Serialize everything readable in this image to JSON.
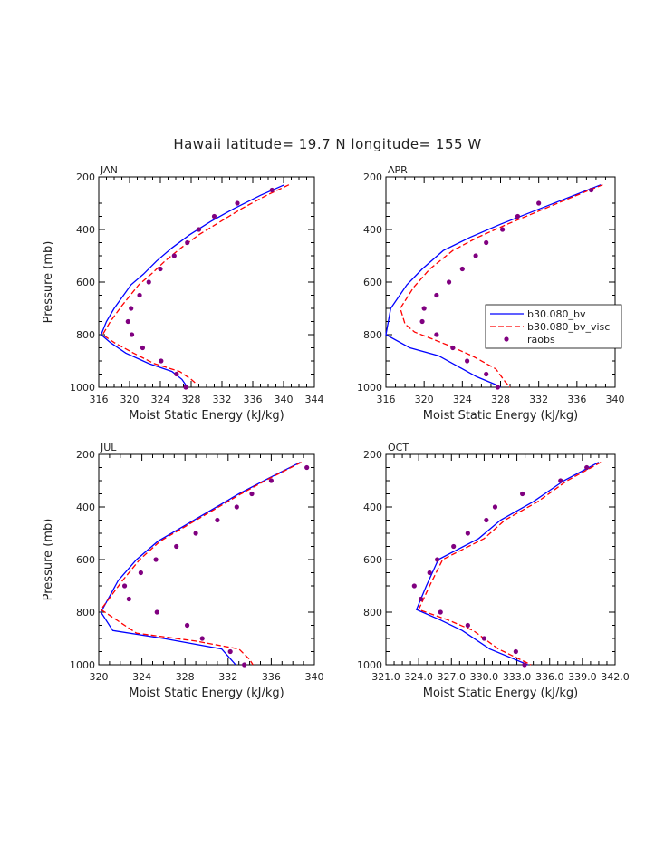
{
  "title": "Hawaii  latitude= 19.7 N longitude= 155 W",
  "chart_data": [
    {
      "type": "line",
      "panel": "JAN",
      "xlabel": "Moist Static Energy (kJ/kg)",
      "ylabel": "Pressure (mb)",
      "xlim": [
        316,
        344
      ],
      "xticks": [
        "316",
        "320",
        "324",
        "328",
        "332",
        "336",
        "340",
        "344"
      ],
      "ylim": [
        1000,
        200
      ],
      "yticks": [
        "200",
        "400",
        "600",
        "800",
        "1000"
      ],
      "series": [
        {
          "name": "b30.080_bv",
          "color": "#0000ff",
          "style": "solid",
          "points": [
            [
              340.1,
              230
            ],
            [
              337.0,
              270
            ],
            [
              333.6,
              320
            ],
            [
              330.5,
              370
            ],
            [
              327.8,
              420
            ],
            [
              325.5,
              470
            ],
            [
              323.5,
              520
            ],
            [
              321.8,
              570
            ],
            [
              320.2,
              610
            ],
            [
              318.0,
              700
            ],
            [
              317.0,
              750
            ],
            [
              316.3,
              800
            ],
            [
              317.5,
              830
            ],
            [
              319.5,
              870
            ],
            [
              322.5,
              910
            ],
            [
              325.5,
              940
            ],
            [
              326.8,
              970
            ],
            [
              327.5,
              1000
            ]
          ]
        },
        {
          "name": "b30.080_bv_visc",
          "color": "#ff0000",
          "style": "dashed",
          "points": [
            [
              340.7,
              230
            ],
            [
              337.8,
              270
            ],
            [
              334.6,
              320
            ],
            [
              331.8,
              370
            ],
            [
              329.0,
              420
            ],
            [
              326.7,
              470
            ],
            [
              324.6,
              520
            ],
            [
              322.8,
              570
            ],
            [
              321.2,
              610
            ],
            [
              319.0,
              690
            ],
            [
              317.5,
              750
            ],
            [
              316.5,
              800
            ],
            [
              318.0,
              830
            ],
            [
              320.5,
              870
            ],
            [
              323.2,
              910
            ],
            [
              326.5,
              940
            ],
            [
              328.0,
              970
            ],
            [
              328.8,
              990
            ]
          ]
        }
      ],
      "points": {
        "name": "raobs",
        "color": "#800080",
        "data": [
          [
            338.5,
            250
          ],
          [
            334.0,
            300
          ],
          [
            331.0,
            350
          ],
          [
            329.0,
            400
          ],
          [
            327.5,
            450
          ],
          [
            325.8,
            500
          ],
          [
            324.0,
            550
          ],
          [
            322.5,
            600
          ],
          [
            321.3,
            650
          ],
          [
            320.2,
            700
          ],
          [
            319.8,
            750
          ],
          [
            320.3,
            800
          ],
          [
            321.7,
            850
          ],
          [
            324.1,
            900
          ],
          [
            326.1,
            950
          ],
          [
            327.3,
            1000
          ]
        ]
      }
    },
    {
      "type": "line",
      "panel": "APR",
      "xlabel": "Moist Static Energy (kJ/kg)",
      "ylabel": "",
      "xlim": [
        316,
        340
      ],
      "xticks": [
        "316",
        "320",
        "324",
        "328",
        "332",
        "336",
        "340"
      ],
      "ylim": [
        1000,
        200
      ],
      "yticks": [
        "200",
        "400",
        "600",
        "800",
        "1000"
      ],
      "legend": {
        "placement": "right",
        "entries": [
          "b30.080_bv",
          "b30.080_bv_visc",
          "raobs"
        ]
      },
      "series": [
        {
          "name": "b30.080_bv",
          "color": "#0000ff",
          "style": "solid",
          "points": [
            [
              338.5,
              230
            ],
            [
              335.0,
              280
            ],
            [
              331.5,
              330
            ],
            [
              328.0,
              380
            ],
            [
              324.8,
              430
            ],
            [
              322.0,
              480
            ],
            [
              319.8,
              550
            ],
            [
              318.2,
              610
            ],
            [
              316.5,
              700
            ],
            [
              316.0,
              800
            ],
            [
              318.5,
              850
            ],
            [
              321.5,
              880
            ],
            [
              323.5,
              920
            ],
            [
              325.5,
              960
            ],
            [
              327.5,
              990
            ],
            [
              328.0,
              1000
            ]
          ]
        },
        {
          "name": "b30.080_bv_visc",
          "color": "#ff0000",
          "style": "dashed",
          "points": [
            [
              338.7,
              230
            ],
            [
              335.3,
              280
            ],
            [
              332.0,
              330
            ],
            [
              328.7,
              380
            ],
            [
              325.6,
              430
            ],
            [
              323.0,
              480
            ],
            [
              320.6,
              550
            ],
            [
              318.9,
              620
            ],
            [
              317.5,
              700
            ],
            [
              318.0,
              760
            ],
            [
              319.0,
              790
            ],
            [
              322.5,
              840
            ],
            [
              325.0,
              880
            ],
            [
              327.5,
              930
            ],
            [
              328.5,
              980
            ],
            [
              329.0,
              1000
            ]
          ]
        }
      ],
      "points": {
        "name": "raobs",
        "color": "#800080",
        "data": [
          [
            337.5,
            250
          ],
          [
            332.0,
            300
          ],
          [
            329.8,
            350
          ],
          [
            328.2,
            400
          ],
          [
            326.5,
            450
          ],
          [
            325.4,
            500
          ],
          [
            324.0,
            550
          ],
          [
            322.6,
            600
          ],
          [
            321.3,
            650
          ],
          [
            320.0,
            700
          ],
          [
            319.8,
            750
          ],
          [
            321.3,
            800
          ],
          [
            323.0,
            850
          ],
          [
            324.5,
            900
          ],
          [
            326.5,
            950
          ],
          [
            327.7,
            1000
          ]
        ]
      }
    },
    {
      "type": "line",
      "panel": "JUL",
      "xlabel": "Moist Static Energy (kJ/kg)",
      "ylabel": "Pressure (mb)",
      "xlim": [
        320,
        340
      ],
      "xticks": [
        "320",
        "324",
        "328",
        "332",
        "336",
        "340"
      ],
      "ylim": [
        1000,
        200
      ],
      "yticks": [
        "200",
        "400",
        "600",
        "800",
        "1000"
      ],
      "series": [
        {
          "name": "b30.080_bv",
          "color": "#0000ff",
          "style": "solid",
          "points": [
            [
              338.7,
              230
            ],
            [
              335.8,
              290
            ],
            [
              333.0,
              350
            ],
            [
              330.5,
              410
            ],
            [
              328.0,
              470
            ],
            [
              325.5,
              530
            ],
            [
              323.5,
              600
            ],
            [
              321.8,
              680
            ],
            [
              320.2,
              800
            ],
            [
              321.3,
              870
            ],
            [
              326.0,
              900
            ],
            [
              331.4,
              940
            ],
            [
              332.7,
              1000
            ]
          ]
        },
        {
          "name": "b30.080_bv_visc",
          "color": "#ff0000",
          "style": "dashed",
          "points": [
            [
              338.8,
              230
            ],
            [
              335.9,
              290
            ],
            [
              333.2,
              350
            ],
            [
              330.7,
              410
            ],
            [
              328.2,
              470
            ],
            [
              325.7,
              530
            ],
            [
              323.8,
              600
            ],
            [
              322.2,
              680
            ],
            [
              320.2,
              790
            ],
            [
              323.5,
              880
            ],
            [
              329.0,
              910
            ],
            [
              333.0,
              940
            ],
            [
              334.0,
              980
            ],
            [
              334.3,
              1000
            ]
          ]
        }
      ],
      "points": {
        "name": "raobs",
        "color": "#800080",
        "data": [
          [
            339.3,
            250
          ],
          [
            336.0,
            300
          ],
          [
            334.2,
            350
          ],
          [
            332.8,
            400
          ],
          [
            331.0,
            450
          ],
          [
            329.0,
            500
          ],
          [
            327.2,
            550
          ],
          [
            325.3,
            600
          ],
          [
            323.9,
            650
          ],
          [
            322.4,
            700
          ],
          [
            322.8,
            750
          ],
          [
            325.4,
            800
          ],
          [
            328.2,
            850
          ],
          [
            329.6,
            900
          ],
          [
            332.2,
            950
          ],
          [
            333.5,
            1000
          ]
        ]
      }
    },
    {
      "type": "line",
      "panel": "OCT",
      "xlabel": "Moist Static Energy (kJ/kg)",
      "ylabel": "",
      "xlim": [
        321.0,
        342.0
      ],
      "xticks": [
        "321.0",
        "324.0",
        "327.0",
        "330.0",
        "333.0",
        "336.0",
        "339.0",
        "342.0"
      ],
      "ylim": [
        1000,
        200
      ],
      "yticks": [
        "200",
        "400",
        "600",
        "800",
        "1000"
      ],
      "series": [
        {
          "name": "b30.080_bv",
          "color": "#0000ff",
          "style": "solid",
          "points": [
            [
              340.5,
              230
            ],
            [
              337.3,
              300
            ],
            [
              334.5,
              380
            ],
            [
              331.5,
              450
            ],
            [
              329.5,
              520
            ],
            [
              325.8,
              600
            ],
            [
              324.7,
              700
            ],
            [
              323.8,
              790
            ],
            [
              326.0,
              830
            ],
            [
              328.0,
              870
            ],
            [
              330.5,
              940
            ],
            [
              334.0,
              1000
            ]
          ]
        },
        {
          "name": "b30.080_bv_visc",
          "color": "#ff0000",
          "style": "dashed",
          "points": [
            [
              340.7,
              230
            ],
            [
              337.6,
              300
            ],
            [
              334.9,
              380
            ],
            [
              331.9,
              450
            ],
            [
              330.0,
              520
            ],
            [
              326.2,
              600
            ],
            [
              325.0,
              700
            ],
            [
              324.0,
              790
            ],
            [
              326.7,
              830
            ],
            [
              329.0,
              870
            ],
            [
              331.3,
              940
            ],
            [
              334.3,
              1000
            ]
          ]
        }
      ],
      "points": {
        "name": "raobs",
        "color": "#800080",
        "data": [
          [
            339.4,
            250
          ],
          [
            337.0,
            300
          ],
          [
            333.5,
            350
          ],
          [
            331.0,
            400
          ],
          [
            330.2,
            450
          ],
          [
            328.5,
            500
          ],
          [
            327.2,
            550
          ],
          [
            325.7,
            600
          ],
          [
            325.0,
            650
          ],
          [
            323.6,
            700
          ],
          [
            324.2,
            750
          ],
          [
            326.0,
            800
          ],
          [
            328.5,
            850
          ],
          [
            330.0,
            900
          ],
          [
            332.9,
            950
          ],
          [
            333.7,
            1000
          ]
        ]
      }
    }
  ]
}
